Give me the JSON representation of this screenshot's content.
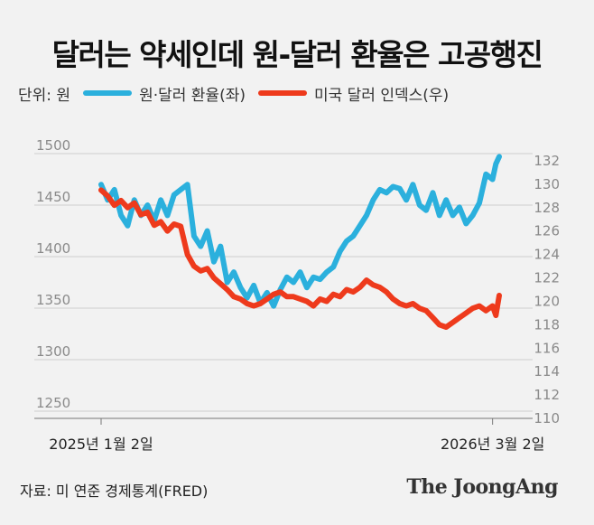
{
  "title": "달러는 약세인데 원-달러 환율은 고공행진",
  "legend": {
    "unit": "단위: 원",
    "series_krw": "원·달러 환율(좌)",
    "series_dxy": "미국 달러 인덱스(우)"
  },
  "source": "자료: 미 연준 경제통계(FRED)",
  "brand": "The JoongAng",
  "colors": {
    "krw": "#2bb0dd",
    "dxy": "#ee3a1c",
    "background": "#f2f2f2",
    "grid": "#cfcfcf",
    "axis_text": "#8a8a8a"
  },
  "chart_data": {
    "type": "line",
    "title": "달러는 약세인데 원-달러 환율은 고공행진",
    "x_tick_labels": [
      "2025년 1월 2일",
      "2026년 3월 2일"
    ],
    "x_range": [
      0,
      60
    ],
    "x_ticks": [
      0,
      59
    ],
    "y_left": {
      "label": "원·달러 환율(좌)",
      "range": [
        1250,
        1500
      ],
      "ticks": [
        1250,
        1300,
        1350,
        1400,
        1450,
        1500
      ]
    },
    "y_right": {
      "label": "미국 달러 인덱스(우)",
      "range": [
        110,
        132
      ],
      "ticks": [
        110,
        112,
        114,
        116,
        118,
        120,
        122,
        124,
        126,
        128,
        130,
        132
      ]
    },
    "series": [
      {
        "name": "원·달러 환율(좌)",
        "axis": "left",
        "x": [
          0,
          1,
          2,
          3,
          4,
          5,
          6,
          7,
          8,
          9,
          10,
          11,
          12,
          13,
          14,
          15,
          16,
          17,
          18,
          19,
          20,
          21,
          22,
          23,
          24,
          25,
          26,
          27,
          28,
          29,
          30,
          31,
          32,
          33,
          34,
          35,
          36,
          37,
          38,
          39,
          40,
          41,
          42,
          43,
          44,
          45,
          46,
          47,
          48,
          49,
          50,
          51,
          52,
          53,
          54,
          55,
          56,
          57,
          58,
          59,
          59.5,
          60
        ],
        "values": [
          1470,
          1455,
          1465,
          1440,
          1430,
          1455,
          1440,
          1450,
          1435,
          1455,
          1440,
          1460,
          1465,
          1470,
          1420,
          1410,
          1425,
          1395,
          1410,
          1375,
          1385,
          1370,
          1360,
          1372,
          1355,
          1365,
          1352,
          1368,
          1380,
          1375,
          1385,
          1370,
          1380,
          1378,
          1385,
          1390,
          1405,
          1415,
          1420,
          1430,
          1440,
          1455,
          1465,
          1462,
          1468,
          1466,
          1455,
          1470,
          1450,
          1445,
          1462,
          1440,
          1455,
          1440,
          1448,
          1432,
          1440,
          1452,
          1480,
          1475,
          1490,
          1497
        ]
      },
      {
        "name": "미국 달러 인덱스(우)",
        "axis": "right",
        "x": [
          0,
          1,
          2,
          3,
          4,
          5,
          6,
          7,
          8,
          9,
          10,
          11,
          12,
          13,
          14,
          15,
          16,
          17,
          18,
          19,
          20,
          21,
          22,
          23,
          24,
          25,
          26,
          27,
          28,
          29,
          30,
          31,
          32,
          33,
          34,
          35,
          36,
          37,
          38,
          39,
          40,
          41,
          42,
          43,
          44,
          45,
          46,
          47,
          48,
          49,
          50,
          51,
          52,
          53,
          54,
          55,
          56,
          57,
          58,
          59,
          59.5,
          60
        ],
        "values": [
          129.5,
          129.0,
          128.2,
          128.6,
          128.0,
          128.4,
          127.4,
          127.6,
          126.5,
          126.8,
          126.0,
          126.6,
          126.4,
          124.0,
          123.0,
          122.6,
          122.8,
          122.0,
          121.5,
          121.0,
          120.4,
          120.2,
          119.8,
          119.6,
          119.8,
          120.2,
          120.6,
          120.8,
          120.4,
          120.4,
          120.2,
          120.0,
          119.6,
          120.2,
          120.0,
          120.6,
          120.4,
          121.0,
          120.8,
          121.2,
          121.8,
          121.4,
          121.2,
          120.8,
          120.2,
          119.8,
          119.6,
          119.8,
          119.4,
          119.2,
          118.6,
          118.0,
          117.8,
          118.2,
          118.6,
          119.0,
          119.4,
          119.6,
          119.2,
          119.6,
          118.8,
          120.5
        ]
      }
    ]
  }
}
